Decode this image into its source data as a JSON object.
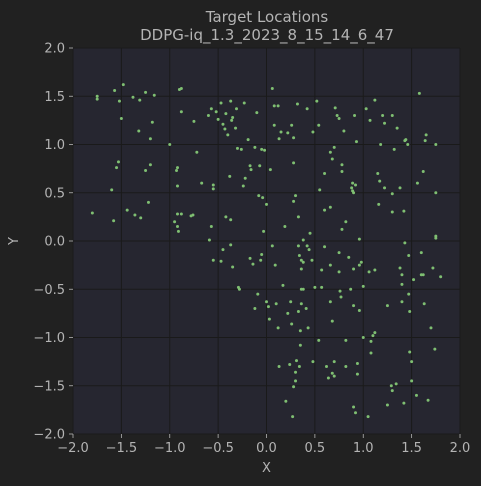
{
  "chart_data": {
    "type": "scatter",
    "title": "Target Locations",
    "subtitle": "DDPG-iq_1.3_2023_8_15_14_6_47",
    "xlabel": "X",
    "ylabel": "Y",
    "xlim": [
      -2.0,
      2.0
    ],
    "ylim": [
      -2.0,
      2.0
    ],
    "xticks": [
      "−2.0",
      "−1.5",
      "−1.0",
      "−0.5",
      "0.0",
      "0.5",
      "1.0",
      "1.5",
      "2.0"
    ],
    "yticks": [
      "−2.0",
      "−1.5",
      "−1.0",
      "−0.5",
      "0.0",
      "0.5",
      "1.0",
      "1.5",
      "2.0"
    ],
    "xtick_values": [
      -2.0,
      -1.5,
      -1.0,
      -0.5,
      0.0,
      0.5,
      1.0,
      1.5,
      2.0
    ],
    "ytick_values": [
      -2.0,
      -1.5,
      -1.0,
      -0.5,
      0.0,
      0.5,
      1.0,
      1.5,
      2.0
    ],
    "grid": true,
    "colors": {
      "background": "#212121",
      "plot_area": "#262630",
      "grid": "#1a1a1a",
      "point": "#7fbf72",
      "text": "#b4b4b4"
    },
    "series": [
      {
        "points": [
          [
            -1.75,
            1.5
          ],
          [
            -1.75,
            1.47
          ],
          [
            -1.57,
            1.56
          ],
          [
            -1.52,
            1.45
          ],
          [
            -1.48,
            1.62
          ],
          [
            -1.38,
            1.49
          ],
          [
            -1.31,
            1.46
          ],
          [
            -1.25,
            1.54
          ],
          [
            -1.16,
            1.51
          ],
          [
            -1.5,
            1.27
          ],
          [
            -1.32,
            1.14
          ],
          [
            -1.18,
            1.23
          ],
          [
            -1.0,
            1.0
          ],
          [
            -1.2,
            1.06
          ],
          [
            -1.53,
            0.82
          ],
          [
            -1.55,
            0.76
          ],
          [
            -1.2,
            0.79
          ],
          [
            -1.25,
            0.73
          ],
          [
            -1.6,
            0.53
          ],
          [
            -1.22,
            0.4
          ],
          [
            -1.44,
            0.32
          ],
          [
            -1.8,
            0.29
          ],
          [
            -1.58,
            0.21
          ],
          [
            -1.36,
            0.27
          ],
          [
            -1.3,
            0.24
          ],
          [
            -0.92,
            0.57
          ],
          [
            -0.9,
            1.57
          ],
          [
            -0.88,
            1.58
          ],
          [
            -0.92,
            0.76
          ],
          [
            -0.93,
            0.73
          ],
          [
            -0.88,
            1.34
          ],
          [
            -0.75,
            1.24
          ],
          [
            -0.72,
            0.92
          ],
          [
            -0.6,
            1.3
          ],
          [
            -0.57,
            1.37
          ],
          [
            -0.52,
            1.34
          ],
          [
            -0.5,
            1.26
          ],
          [
            -0.47,
            1.43
          ],
          [
            -0.45,
            1.21
          ],
          [
            -0.43,
            1.16
          ],
          [
            -0.4,
            1.1
          ],
          [
            -0.37,
            1.45
          ],
          [
            -0.31,
            1.37
          ],
          [
            -0.35,
            1.28
          ],
          [
            -0.32,
            1.17
          ],
          [
            -0.26,
            0.95
          ],
          [
            -0.23,
            1.43
          ],
          [
            -0.19,
            1.05
          ],
          [
            -0.1,
            1.33
          ],
          [
            -0.12,
            0.97
          ],
          [
            -0.07,
            0.78
          ],
          [
            -0.05,
            0.95
          ],
          [
            -0.02,
            0.94
          ],
          [
            0.04,
            0.74
          ],
          [
            -0.55,
            0.58
          ],
          [
            -0.55,
            0.54
          ],
          [
            -0.38,
            0.67
          ],
          [
            -0.17,
            0.78
          ],
          [
            -0.22,
            0.65
          ],
          [
            -0.24,
            0.57
          ],
          [
            -0.67,
            0.6
          ],
          [
            -0.92,
            0.28
          ],
          [
            -0.88,
            0.28
          ],
          [
            -0.95,
            0.2
          ],
          [
            -0.92,
            0.15
          ],
          [
            -0.91,
            0.1
          ],
          [
            -0.78,
            0.26
          ],
          [
            -0.76,
            0.27
          ],
          [
            -0.57,
            0.15
          ],
          [
            -0.42,
            0.25
          ],
          [
            -0.37,
            0.22
          ],
          [
            -0.08,
            0.47
          ],
          [
            -0.04,
            0.45
          ],
          [
            0.0,
            0.38
          ],
          [
            -0.59,
            0.01
          ],
          [
            -0.55,
            -0.2
          ],
          [
            -0.47,
            -0.21
          ],
          [
            -0.45,
            -0.09
          ],
          [
            -0.37,
            -0.04
          ],
          [
            -0.35,
            -0.27
          ],
          [
            -0.29,
            -0.48
          ],
          [
            -0.28,
            -0.5
          ],
          [
            -0.17,
            -0.18
          ],
          [
            -0.14,
            -0.24
          ],
          [
            -0.12,
            -0.7
          ],
          [
            -0.09,
            -0.55
          ],
          [
            -0.05,
            -0.14
          ],
          [
            -0.06,
            -0.2
          ],
          [
            -0.03,
            0.1
          ],
          [
            0.0,
            -0.63
          ],
          [
            0.02,
            -0.68
          ],
          [
            0.03,
            -0.81
          ],
          [
            0.06,
            -0.05
          ],
          [
            0.09,
            -0.25
          ],
          [
            0.1,
            -0.65
          ],
          [
            0.12,
            -0.9
          ],
          [
            0.17,
            -0.46
          ],
          [
            0.19,
            0.15
          ],
          [
            0.22,
            -0.75
          ],
          [
            0.25,
            -0.63
          ],
          [
            0.26,
            -0.86
          ],
          [
            0.24,
            -1.28
          ],
          [
            0.27,
            -1.82
          ],
          [
            0.28,
            -1.51
          ],
          [
            0.28,
            0.41
          ],
          [
            0.3,
            0.47
          ],
          [
            0.33,
            0.25
          ],
          [
            0.33,
            -0.05
          ],
          [
            0.34,
            -0.15
          ],
          [
            0.36,
            -0.2
          ],
          [
            0.36,
            -0.29
          ],
          [
            0.36,
            -0.5
          ],
          [
            0.36,
            -0.65
          ],
          [
            0.33,
            -0.73
          ],
          [
            0.35,
            -0.93
          ],
          [
            0.35,
            -1.08
          ],
          [
            0.31,
            -1.24
          ],
          [
            0.3,
            -1.36
          ],
          [
            0.3,
            -1.45
          ],
          [
            0.34,
            -1.3
          ],
          [
            0.43,
            -0.9
          ],
          [
            0.38,
            0.01
          ],
          [
            0.42,
            -0.05
          ],
          [
            0.44,
            -0.09
          ],
          [
            0.45,
            0.08
          ],
          [
            0.38,
            -0.22
          ],
          [
            0.38,
            -0.5
          ],
          [
            0.41,
            -0.7
          ],
          [
            0.47,
            -0.2
          ],
          [
            0.54,
            -1.03
          ],
          [
            0.2,
            -1.66
          ],
          [
            0.13,
            -1.3
          ],
          [
            0.08,
            1.2
          ],
          [
            0.06,
            1.58
          ],
          [
            0.08,
            1.4
          ],
          [
            0.12,
            1.4
          ],
          [
            0.15,
            1.13
          ],
          [
            0.13,
            1.06
          ],
          [
            0.22,
            1.12
          ],
          [
            0.26,
            1.2
          ],
          [
            0.28,
            1.07
          ],
          [
            0.28,
            0.81
          ],
          [
            0.32,
            1.42
          ],
          [
            0.42,
            1.37
          ],
          [
            0.48,
            1.13
          ],
          [
            0.52,
            1.45
          ],
          [
            0.54,
            1.2
          ],
          [
            0.55,
            0.53
          ],
          [
            0.6,
            0.7
          ],
          [
            0.6,
            0.32
          ],
          [
            0.57,
            -0.3
          ],
          [
            0.57,
            -0.48
          ],
          [
            0.6,
            -0.06
          ],
          [
            0.62,
            -1.3
          ],
          [
            0.64,
            -1.42
          ],
          [
            0.66,
            -0.63
          ],
          [
            0.68,
            -0.83
          ],
          [
            0.7,
            -1.25
          ],
          [
            0.68,
            -1.37
          ],
          [
            0.66,
            -0.25
          ],
          [
            0.66,
            0.35
          ],
          [
            0.66,
            0.92
          ],
          [
            0.68,
            0.85
          ],
          [
            0.7,
            0.97
          ],
          [
            0.71,
            1.38
          ],
          [
            0.73,
            1.3
          ],
          [
            0.75,
            1.27
          ],
          [
            0.75,
            -0.12
          ],
          [
            0.75,
            -0.32
          ],
          [
            0.76,
            -0.52
          ],
          [
            0.77,
            -0.58
          ],
          [
            0.78,
            0.12
          ],
          [
            0.78,
            0.72
          ],
          [
            0.78,
            0.79
          ],
          [
            0.8,
            1.14
          ],
          [
            0.82,
            -1.03
          ],
          [
            0.82,
            -1.3
          ],
          [
            0.85,
            -0.17
          ],
          [
            0.87,
            -0.5
          ],
          [
            0.88,
            0.55
          ],
          [
            0.89,
            0.52
          ],
          [
            0.89,
            0.6
          ],
          [
            0.9,
            0.5
          ],
          [
            0.9,
            -0.29
          ],
          [
            0.9,
            -0.67
          ],
          [
            0.9,
            -1.72
          ],
          [
            0.92,
            -1.78
          ],
          [
            0.91,
            1.3
          ],
          [
            0.92,
            0.58
          ],
          [
            0.93,
            1.03
          ],
          [
            0.94,
            -1.27
          ],
          [
            0.94,
            -1.38
          ],
          [
            0.96,
            0.02
          ],
          [
            0.96,
            -0.25
          ],
          [
            0.98,
            -0.22
          ],
          [
            1.0,
            -1.0
          ],
          [
            1.0,
            -0.47
          ],
          [
            1.03,
            1.37
          ],
          [
            1.07,
            1.25
          ],
          [
            1.08,
            -1.04
          ],
          [
            1.08,
            -1.16
          ],
          [
            1.1,
            -0.98
          ],
          [
            1.12,
            -0.95
          ],
          [
            1.12,
            1.46
          ],
          [
            1.12,
            -0.3
          ],
          [
            1.05,
            -1.82
          ],
          [
            1.15,
            0.7
          ],
          [
            1.17,
            0.62
          ],
          [
            1.18,
            1.0
          ],
          [
            1.2,
            1.3
          ],
          [
            1.22,
            1.22
          ],
          [
            1.22,
            0.55
          ],
          [
            1.25,
            -0.67
          ],
          [
            1.25,
            -1.7
          ],
          [
            1.3,
            1.3
          ],
          [
            1.3,
            0.3
          ],
          [
            1.3,
            -1.55
          ],
          [
            1.32,
            0.95
          ],
          [
            1.34,
            -1.48
          ],
          [
            1.35,
            1.17
          ],
          [
            1.38,
            -0.28
          ],
          [
            1.4,
            -0.45
          ],
          [
            1.4,
            -0.63
          ],
          [
            1.4,
            -0.35
          ],
          [
            1.44,
            1.05
          ],
          [
            1.46,
            1.0
          ],
          [
            1.47,
            -0.15
          ],
          [
            1.47,
            -0.55
          ],
          [
            1.48,
            -0.73
          ],
          [
            1.48,
            -1.15
          ],
          [
            1.5,
            -1.25
          ],
          [
            1.5,
            -1.45
          ],
          [
            1.52,
            -0.4
          ],
          [
            1.55,
            -1.6
          ],
          [
            1.56,
            0.6
          ],
          [
            1.58,
            1.53
          ],
          [
            1.6,
            -0.35
          ],
          [
            1.62,
            -0.35
          ],
          [
            1.62,
            0.72
          ],
          [
            1.63,
            -0.65
          ],
          [
            1.64,
            1.04
          ],
          [
            1.65,
            1.1
          ],
          [
            1.67,
            -1.65
          ],
          [
            1.7,
            -0.9
          ],
          [
            1.72,
            -0.28
          ],
          [
            1.74,
            -1.12
          ],
          [
            1.75,
            0.5
          ],
          [
            1.75,
            0.05
          ],
          [
            1.75,
            0.03
          ],
          [
            1.75,
            1.0
          ],
          [
            1.43,
            -0.02
          ],
          [
            1.38,
            0.55
          ],
          [
            1.43,
            1.04
          ],
          [
            1.3,
            0.49
          ],
          [
            1.6,
            -0.12
          ],
          [
            1.8,
            -0.37
          ],
          [
            0.82,
            0.2
          ],
          [
            0.5,
            -0.48
          ],
          [
            0.48,
            -1.25
          ],
          [
            0.7,
            -1.4
          ],
          [
            1.42,
            -1.68
          ],
          [
            1.29,
            -1.5
          ],
          [
            0.96,
            -0.72
          ],
          [
            1.06,
            -0.32
          ],
          [
            1.16,
            0.38
          ],
          [
            1.42,
            0.31
          ],
          [
            -0.16,
            0.74
          ],
          [
            -0.3,
            0.96
          ],
          [
            -0.36,
            1.25
          ],
          [
            -0.42,
            1.32
          ]
        ]
      }
    ]
  }
}
